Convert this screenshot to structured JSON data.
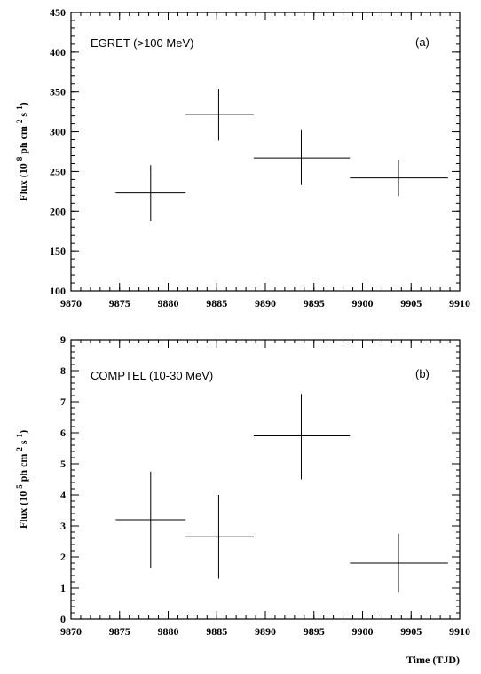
{
  "chart_data": [
    {
      "type": "scatter",
      "panel_label": "(a)",
      "annotation": "EGRET (>100 MeV)",
      "ylabel": "Flux (10⁻⁸ ph cm⁻² s⁻¹)",
      "ylabel_parts": {
        "pre": "Flux (10",
        "exp1": "-8",
        "mid1": " ph cm",
        "exp2": "-2",
        "mid2": " s",
        "exp3": "-1",
        "post": ")"
      },
      "xlim": [
        9870,
        9910
      ],
      "ylim": [
        100,
        450
      ],
      "xticks": [
        9870,
        9875,
        9880,
        9885,
        9890,
        9895,
        9900,
        9905,
        9910
      ],
      "yticks": [
        100,
        150,
        200,
        250,
        300,
        350,
        400,
        450
      ],
      "points": [
        {
          "x": 9878.2,
          "y": 223,
          "xerr": [
            9874.6,
            9881.8
          ],
          "yerr": [
            188,
            258
          ]
        },
        {
          "x": 9885.2,
          "y": 322,
          "xerr": [
            9881.8,
            9888.8
          ],
          "yerr": [
            289,
            354
          ]
        },
        {
          "x": 9893.7,
          "y": 267,
          "xerr": [
            9888.8,
            9898.7
          ],
          "yerr": [
            233,
            302
          ]
        },
        {
          "x": 9903.7,
          "y": 242,
          "xerr": [
            9898.7,
            9908.8
          ],
          "yerr": [
            219,
            265
          ]
        }
      ]
    },
    {
      "type": "scatter",
      "panel_label": "(b)",
      "annotation": "COMPTEL (10-30 MeV)",
      "ylabel": "Flux (10⁻⁵ ph cm⁻² s⁻¹)",
      "ylabel_parts": {
        "pre": "Flux (10",
        "exp1": "-5",
        "mid1": " ph cm",
        "exp2": "-2",
        "mid2": " s",
        "exp3": "-1",
        "post": ")"
      },
      "xlabel": "Time (TJD)",
      "xlim": [
        9870,
        9910
      ],
      "ylim": [
        0,
        9
      ],
      "xticks": [
        9870,
        9875,
        9880,
        9885,
        9890,
        9895,
        9900,
        9905,
        9910
      ],
      "yticks": [
        0,
        1,
        2,
        3,
        4,
        5,
        6,
        7,
        8,
        9
      ],
      "points": [
        {
          "x": 9878.2,
          "y": 3.2,
          "xerr": [
            9874.6,
            9881.8
          ],
          "yerr": [
            1.65,
            4.75
          ]
        },
        {
          "x": 9885.2,
          "y": 2.65,
          "xerr": [
            9881.8,
            9888.8
          ],
          "yerr": [
            1.3,
            4.0
          ]
        },
        {
          "x": 9893.7,
          "y": 5.9,
          "xerr": [
            9888.8,
            9898.7
          ],
          "yerr": [
            4.5,
            7.25
          ]
        },
        {
          "x": 9903.7,
          "y": 1.8,
          "xerr": [
            9898.7,
            9908.8
          ],
          "yerr": [
            0.85,
            2.75
          ]
        }
      ]
    }
  ]
}
